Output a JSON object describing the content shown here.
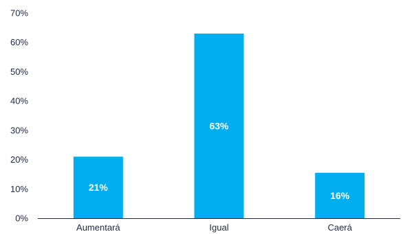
{
  "chart_data": {
    "type": "bar",
    "categories": [
      "Aumentará",
      "Igual",
      "Caerá"
    ],
    "values": [
      21,
      63,
      16
    ],
    "data_labels": [
      "21%",
      "63%",
      "16%"
    ],
    "bar_values_exact": [
      21,
      63,
      15.5
    ],
    "ylim": [
      0,
      70
    ],
    "yticks": [
      0,
      10,
      20,
      30,
      40,
      50,
      60,
      70
    ],
    "ytick_labels": [
      "0%",
      "10%",
      "20%",
      "30%",
      "40%",
      "50%",
      "60%",
      "70%"
    ],
    "grid": false,
    "legend": "none",
    "bar_color": "#00aeef",
    "axis_color": "#1f2a44"
  }
}
